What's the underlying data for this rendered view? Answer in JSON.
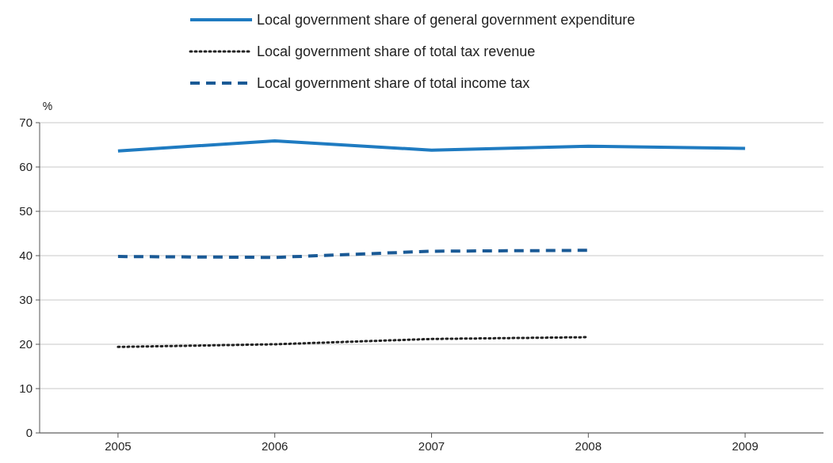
{
  "chart_data": {
    "type": "line",
    "ylabel": "%",
    "categories": [
      "2005",
      "2006",
      "2007",
      "2008",
      "2009"
    ],
    "series": [
      {
        "name": "Local government share of general government expenditure",
        "color": "#1f7bc1",
        "line_style": "solid",
        "values": [
          63.6,
          65.9,
          63.8,
          64.7,
          64.2
        ]
      },
      {
        "name": "Local government share of total tax revenue",
        "color": "#222222",
        "line_style": "dotted",
        "values": [
          19.4,
          20.0,
          21.2,
          21.6,
          null
        ]
      },
      {
        "name": "Local government share of total income tax",
        "color": "#1a5a96",
        "line_style": "dashed",
        "values": [
          39.8,
          39.6,
          41.0,
          41.2,
          null
        ]
      }
    ],
    "ylim": [
      0,
      70
    ],
    "yticks": [
      0,
      10,
      20,
      30,
      40,
      50,
      60,
      70
    ],
    "grid": "y",
    "legend": "top",
    "marker": "none"
  }
}
